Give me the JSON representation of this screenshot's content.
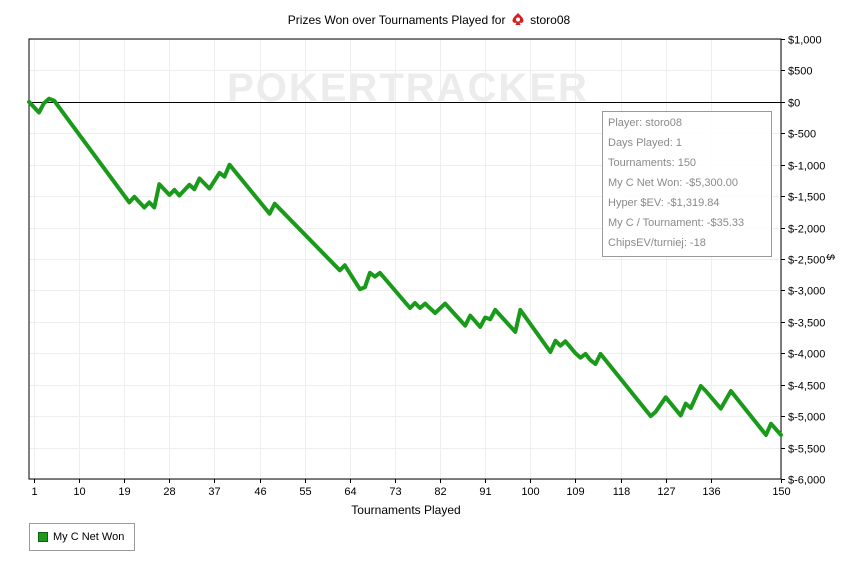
{
  "chart_data": {
    "type": "line",
    "title_prefix": "Prizes Won over Tournaments Played for",
    "title_player": "storo08",
    "watermark": "POKERTRACKER",
    "xlabel": "Tournaments Played",
    "ylabel": "$",
    "x_ticks": [
      1,
      10,
      19,
      28,
      37,
      46,
      55,
      64,
      73,
      82,
      91,
      100,
      109,
      118,
      127,
      136,
      150
    ],
    "y_ticks": [
      "$1,000",
      "$500",
      "$0",
      "$-500",
      "$-1,000",
      "$-1,500",
      "$-2,000",
      "$-2,500",
      "$-3,000",
      "$-3,500",
      "$-4,000",
      "$-4,500",
      "$-5,000",
      "$-5,500",
      "$-6,000"
    ],
    "xlim": [
      0,
      150
    ],
    "ylim": [
      -6000,
      1000
    ],
    "grid": true,
    "line_color": "#1a9a1a",
    "series": [
      {
        "name": "My C Net Won",
        "points": [
          [
            0,
            0
          ],
          [
            2,
            -170
          ],
          [
            3,
            -20
          ],
          [
            4,
            50
          ],
          [
            5,
            20
          ],
          [
            20,
            -1600
          ],
          [
            21,
            -1510
          ],
          [
            23,
            -1680
          ],
          [
            24,
            -1600
          ],
          [
            25,
            -1680
          ],
          [
            26,
            -1310
          ],
          [
            28,
            -1480
          ],
          [
            29,
            -1400
          ],
          [
            30,
            -1490
          ],
          [
            32,
            -1320
          ],
          [
            33,
            -1390
          ],
          [
            34,
            -1220
          ],
          [
            36,
            -1380
          ],
          [
            38,
            -1130
          ],
          [
            39,
            -1190
          ],
          [
            40,
            -1000
          ],
          [
            48,
            -1780
          ],
          [
            49,
            -1620
          ],
          [
            62,
            -2680
          ],
          [
            63,
            -2600
          ],
          [
            66,
            -2980
          ],
          [
            67,
            -2950
          ],
          [
            68,
            -2720
          ],
          [
            69,
            -2780
          ],
          [
            70,
            -2720
          ],
          [
            76,
            -3280
          ],
          [
            77,
            -3200
          ],
          [
            78,
            -3280
          ],
          [
            79,
            -3210
          ],
          [
            81,
            -3360
          ],
          [
            83,
            -3210
          ],
          [
            87,
            -3560
          ],
          [
            88,
            -3400
          ],
          [
            90,
            -3580
          ],
          [
            91,
            -3430
          ],
          [
            92,
            -3460
          ],
          [
            93,
            -3310
          ],
          [
            97,
            -3660
          ],
          [
            98,
            -3310
          ],
          [
            104,
            -3980
          ],
          [
            105,
            -3800
          ],
          [
            106,
            -3880
          ],
          [
            107,
            -3810
          ],
          [
            109,
            -4000
          ],
          [
            110,
            -4070
          ],
          [
            111,
            -4010
          ],
          [
            112,
            -4110
          ],
          [
            113,
            -4170
          ],
          [
            114,
            -4010
          ],
          [
            124,
            -5000
          ],
          [
            125,
            -4930
          ],
          [
            127,
            -4700
          ],
          [
            130,
            -4990
          ],
          [
            131,
            -4800
          ],
          [
            132,
            -4870
          ],
          [
            134,
            -4520
          ],
          [
            135,
            -4600
          ],
          [
            138,
            -4880
          ],
          [
            140,
            -4600
          ],
          [
            147,
            -5300
          ],
          [
            148,
            -5120
          ],
          [
            150,
            -5300
          ]
        ]
      }
    ]
  },
  "stats_box": {
    "rows": [
      "Player: storo08",
      "Days Played: 1",
      "Tournaments: 150",
      "My C Net Won: -$5,300.00",
      "Hyper $EV: -$1,319.84",
      "My C / Tournament: -$35.33",
      "ChipsEV/turniej: -18"
    ]
  },
  "legend": {
    "label": "My C Net Won"
  }
}
